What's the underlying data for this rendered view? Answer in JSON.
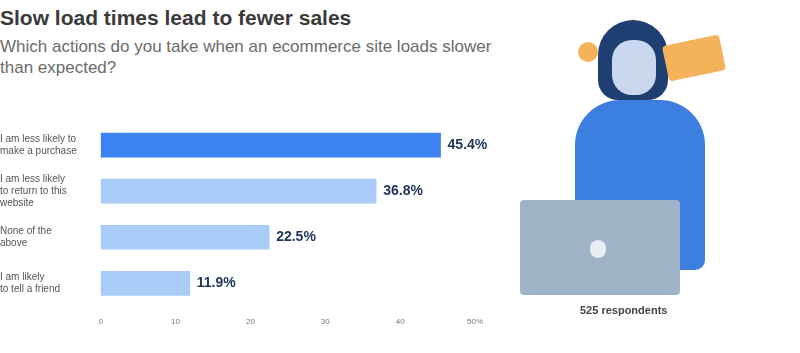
{
  "chart_data": {
    "type": "bar",
    "orientation": "horizontal",
    "title": "Slow load times lead to fewer sales",
    "subtitle": "Which actions do you take when an ecommerce site loads slower than expected?",
    "categories": [
      [
        "I am less likely to",
        "make a purchase"
      ],
      [
        "I am less likely",
        "to return to this",
        "website"
      ],
      [
        "None of the",
        "above"
      ],
      [
        "I am likely",
        "to tell a friend"
      ]
    ],
    "values": [
      45.4,
      36.8,
      22.5,
      11.9
    ],
    "value_labels": [
      "45.4%",
      "36.8%",
      "22.5%",
      "11.9%"
    ],
    "colors": [
      "#3d84f2",
      "#a9cdf8",
      "#a9cdf8",
      "#a9cdf8"
    ],
    "xlim": [
      0,
      50
    ],
    "xticks": [
      0,
      10,
      20,
      30,
      40,
      {
        "value": 50,
        "label": "50%"
      }
    ],
    "grid": false,
    "data_labels": true,
    "annotations": [
      "525 respondents"
    ]
  }
}
